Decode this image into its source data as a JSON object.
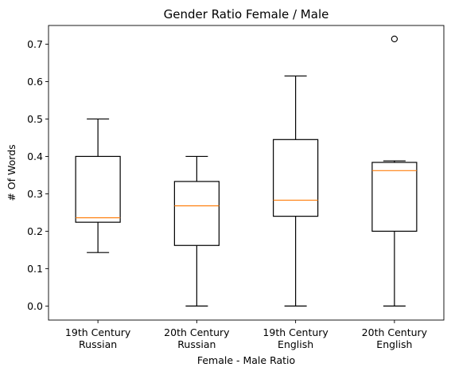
{
  "chart_data": {
    "type": "box",
    "title": "Gender Ratio Female / Male",
    "xlabel": "Female - Male Ratio",
    "ylabel": "# Of Words",
    "ylim": [
      -0.0375,
      0.75
    ],
    "yticks": [
      0.0,
      0.1,
      0.2,
      0.3,
      0.4,
      0.5,
      0.6,
      0.7
    ],
    "ytick_labels": [
      "0.0",
      "0.1",
      "0.2",
      "0.3",
      "0.4",
      "0.5",
      "0.6",
      "0.7"
    ],
    "grid": false,
    "categories": [
      [
        "19th Century",
        "Russian"
      ],
      [
        "20th Century",
        "Russian"
      ],
      [
        "19th Century",
        "English"
      ],
      [
        "20th Century",
        "English"
      ]
    ],
    "boxes": [
      {
        "whisker_low": 0.143,
        "q1": 0.224,
        "median": 0.236,
        "q3": 0.4,
        "whisker_high": 0.5,
        "outliers": []
      },
      {
        "whisker_low": 0.0,
        "q1": 0.162,
        "median": 0.268,
        "q3": 0.333,
        "whisker_high": 0.4,
        "outliers": []
      },
      {
        "whisker_low": 0.0,
        "q1": 0.24,
        "median": 0.283,
        "q3": 0.445,
        "whisker_high": 0.615,
        "outliers": []
      },
      {
        "whisker_low": 0.0,
        "q1": 0.2,
        "median": 0.362,
        "q3": 0.384,
        "whisker_high": 0.388,
        "outliers": [
          0.714
        ]
      }
    ],
    "colors": {
      "box": "#000000",
      "median": "#ff7f0e"
    }
  }
}
